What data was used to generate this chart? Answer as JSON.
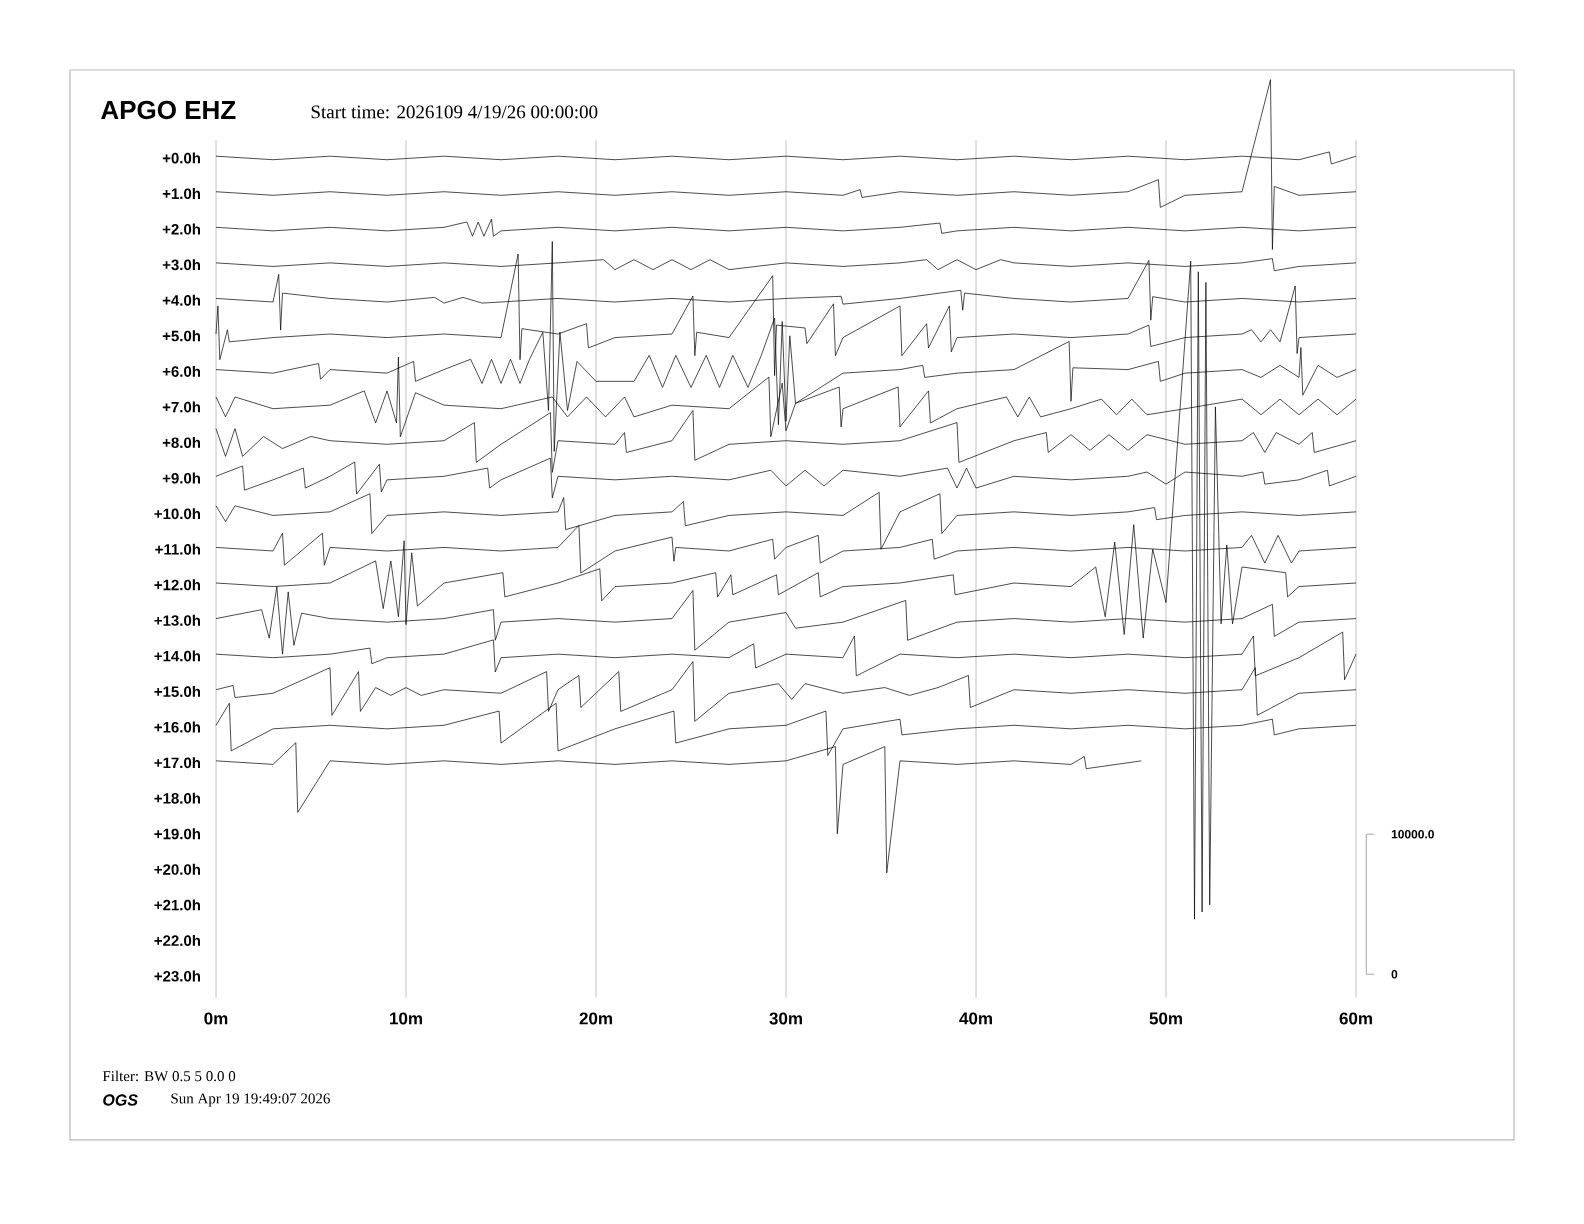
{
  "chart_data": {
    "type": "line",
    "title": "APGO EHZ",
    "subtitle": "Start time: 2026109  4/19/26 00:00:00",
    "annotations": [
      "Filter: BW 0.5 5 0.0 0",
      "OGS",
      "Sun Apr 19 19:49:07 2026"
    ],
    "color": "#000000",
    "grid": "x",
    "xlim": [
      0,
      60
    ],
    "xticks": [
      {
        "value": 0,
        "label": "0m"
      },
      {
        "value": 10,
        "label": "10m"
      },
      {
        "value": 20,
        "label": "20m"
      },
      {
        "value": 30,
        "label": "30m"
      },
      {
        "value": 40,
        "label": "40m"
      },
      {
        "value": 50,
        "label": "50m"
      },
      {
        "value": 60,
        "label": "60m"
      }
    ],
    "ylim": [
      23.6,
      -2.4
    ],
    "yticks": [
      {
        "value": 0,
        "label": "+0.0h"
      },
      {
        "value": 1,
        "label": "+1.0h"
      },
      {
        "value": 2,
        "label": "+2.0h"
      },
      {
        "value": 3,
        "label": "+3.0h"
      },
      {
        "value": 4,
        "label": "+4.0h"
      },
      {
        "value": 5,
        "label": "+5.0h"
      },
      {
        "value": 6,
        "label": "+6.0h"
      },
      {
        "value": 7,
        "label": "+7.0h"
      },
      {
        "value": 8,
        "label": "+8.0h"
      },
      {
        "value": 9,
        "label": "+9.0h"
      },
      {
        "value": 10,
        "label": "+10.0h"
      },
      {
        "value": 11,
        "label": "+11.0h"
      },
      {
        "value": 12,
        "label": "+12.0h"
      },
      {
        "value": 13,
        "label": "+13.0h"
      },
      {
        "value": 14,
        "label": "+14.0h"
      },
      {
        "value": 15,
        "label": "+15.0h"
      },
      {
        "value": 16,
        "label": "+16.0h"
      },
      {
        "value": 17,
        "label": "+17.0h"
      },
      {
        "value": 18,
        "label": "+18.0h"
      },
      {
        "value": 19,
        "label": "+19.0h"
      },
      {
        "value": 20,
        "label": "+20.0h"
      },
      {
        "value": 21,
        "label": "+21.0h"
      },
      {
        "value": 22,
        "label": "+22.0h"
      },
      {
        "value": 23,
        "label": "+23.0h"
      }
    ],
    "y2lim": [
      -1651,
      64389
    ],
    "y2ticks": [
      {
        "value": 0,
        "label": "0"
      },
      {
        "value": 10000,
        "label": "10000.0"
      }
    ],
    "series": [
      {
        "x": [
          0,
          3,
          6,
          9,
          12,
          15,
          18,
          21,
          24,
          27,
          30,
          33,
          36,
          39,
          42,
          45,
          48,
          51,
          54,
          57,
          58.6,
          58.7,
          60
        ],
        "values": [
          -0.05,
          0.05,
          -0.05,
          0.05,
          -0.05,
          0.05,
          -0.05,
          0.05,
          -0.05,
          0.05,
          -0.05,
          0.05,
          -0.05,
          0.05,
          -0.05,
          0.05,
          -0.05,
          0.05,
          -0.05,
          0.05,
          -0.17,
          0.17,
          -0.05
        ]
      },
      {
        "x": [
          0,
          3,
          6,
          9,
          12,
          15,
          18,
          21,
          24,
          27,
          30,
          33,
          33.9,
          34,
          36,
          39,
          42,
          45,
          48,
          49.6,
          49.7,
          51,
          54,
          55.5,
          55.6,
          55.7,
          57,
          60
        ],
        "values": [
          0.95,
          1.05,
          0.95,
          1.05,
          0.95,
          1.05,
          0.95,
          1.05,
          0.95,
          1.05,
          0.95,
          1.05,
          0.89,
          1.11,
          0.95,
          1.05,
          0.95,
          1.05,
          0.95,
          0.61,
          1.39,
          1.05,
          0.95,
          -2.2,
          2.57,
          0.8,
          1.05,
          0.95
        ]
      },
      {
        "x": [
          0,
          3,
          6,
          9,
          12,
          13.2,
          13.5,
          13.8,
          14.1,
          14.5,
          14.6,
          15,
          18,
          21,
          24,
          27,
          30,
          33,
          36,
          38.1,
          38.2,
          39,
          42,
          45,
          48,
          51,
          54,
          57,
          60
        ],
        "values": [
          1.95,
          2.05,
          1.95,
          2.05,
          1.95,
          1.8,
          2.2,
          1.8,
          2.2,
          1.72,
          2.2,
          2.05,
          1.95,
          2.05,
          1.95,
          2.05,
          1.95,
          2.05,
          1.95,
          1.83,
          2.12,
          2.05,
          1.95,
          2.05,
          1.95,
          2.05,
          1.95,
          2.05,
          1.95
        ]
      },
      {
        "x": [
          0,
          3,
          6,
          9,
          12,
          15,
          18,
          20.4,
          21,
          22,
          23,
          24,
          25,
          26,
          27,
          30,
          33,
          36,
          37.4,
          38,
          39,
          40,
          41.3,
          42,
          45,
          48,
          51,
          54,
          55.6,
          55.7,
          57,
          60
        ],
        "values": [
          2.95,
          3.05,
          2.95,
          3.05,
          2.95,
          3.05,
          2.95,
          2.86,
          3.14,
          2.86,
          3.14,
          2.86,
          3.14,
          2.86,
          3.14,
          2.95,
          3.05,
          2.95,
          2.86,
          3.14,
          2.86,
          3.14,
          2.86,
          2.95,
          3.05,
          2.95,
          3.05,
          2.95,
          2.83,
          3.17,
          3.05,
          2.95
        ]
      },
      {
        "x": [
          0,
          3,
          3.3,
          3.4,
          3.5,
          6,
          9,
          11.5,
          12,
          13,
          14,
          15,
          18,
          21,
          24,
          27,
          30,
          32.9,
          33,
          36,
          39.2,
          39.3,
          39.4,
          42,
          45,
          48,
          49.1,
          49.2,
          49.3,
          51,
          54,
          57,
          60
        ],
        "values": [
          3.95,
          4.05,
          3.27,
          4.84,
          3.8,
          3.95,
          4.05,
          3.92,
          4.08,
          3.92,
          4.08,
          4.05,
          3.95,
          4.05,
          3.95,
          4.05,
          3.95,
          3.89,
          4.11,
          3.95,
          3.72,
          4.28,
          3.8,
          3.95,
          4.05,
          3.95,
          2.88,
          4.56,
          3.9,
          4.05,
          3.95,
          4.05,
          3.95
        ]
      },
      {
        "x": [
          0,
          0.1,
          0.2,
          0.6,
          0.7,
          3,
          6,
          9,
          12,
          15,
          15.9,
          16,
          16.1,
          18,
          19.5,
          19.6,
          21,
          24,
          25.1,
          25.2,
          25.3,
          27,
          29.3,
          29.4,
          29.5,
          31,
          31.1,
          32.5,
          32.6,
          33,
          36,
          36.1,
          37.4,
          37.5,
          38.6,
          38.7,
          39,
          42,
          45,
          48,
          49.1,
          49.2,
          51,
          54,
          54.5,
          55,
          55.5,
          56,
          56.8,
          56.9,
          57,
          60
        ],
        "values": [
          4.95,
          4.16,
          5.67,
          4.83,
          5.17,
          5.05,
          4.95,
          5.05,
          4.95,
          5.05,
          2.7,
          5.67,
          4.8,
          4.95,
          4.66,
          5.34,
          5.05,
          4.95,
          3.88,
          5.56,
          4.9,
          5.05,
          3.31,
          6.12,
          4.7,
          4.78,
          5.22,
          4.1,
          5.56,
          5.05,
          4.16,
          5.56,
          4.66,
          5.34,
          4.16,
          5.45,
          5.05,
          4.95,
          5.05,
          4.95,
          4.7,
          5.3,
          5.05,
          4.95,
          4.83,
          5.17,
          4.83,
          5.17,
          3.6,
          5.5,
          5.05,
          4.95
        ]
      },
      {
        "x": [
          0,
          3,
          5.4,
          5.5,
          6,
          9,
          10.4,
          10.5,
          12,
          13.4,
          14,
          14.5,
          15,
          15.5,
          16,
          16.5,
          17.2,
          17.5,
          17.7,
          17.8,
          18.1,
          18.5,
          19,
          20,
          21,
          22,
          22.8,
          23.5,
          24.2,
          25,
          25.8,
          26.5,
          27.2,
          28,
          28.7,
          29.4,
          29.6,
          29.8,
          30,
          30.2,
          30.5,
          33,
          36,
          37.2,
          37.3,
          39,
          42,
          44.9,
          45,
          45.1,
          48,
          49.6,
          49.7,
          51,
          54,
          55,
          56,
          57,
          57.1,
          57.2,
          58,
          59,
          60
        ],
        "values": [
          5.95,
          6.05,
          5.78,
          6.22,
          5.95,
          6.05,
          5.72,
          6.28,
          5.95,
          5.66,
          6.34,
          5.66,
          6.34,
          5.66,
          6.34,
          5.66,
          4.9,
          7.1,
          2.35,
          8.25,
          4.9,
          7.1,
          5.72,
          6.28,
          null,
          6.28,
          5.55,
          6.45,
          5.55,
          6.45,
          5.55,
          6.45,
          5.55,
          6.45,
          5.55,
          4.5,
          7.5,
          4.6,
          7.4,
          5,
          6.9,
          6.05,
          5.95,
          5.83,
          6.17,
          6.05,
          5.95,
          5.16,
          6.84,
          5.9,
          5.95,
          5.72,
          6.28,
          6.05,
          5.95,
          6.17,
          5.83,
          6.17,
          5.33,
          6.67,
          5.83,
          6.17,
          5.95
        ]
      },
      {
        "x": [
          0,
          0.5,
          1,
          3,
          6,
          7.8,
          8.4,
          9,
          9.5,
          9.6,
          9.7,
          10.5,
          12,
          15,
          17.7,
          18.5,
          19.5,
          20.5,
          21.5,
          22,
          24,
          27,
          29.1,
          29.2,
          29.8,
          30,
          30.5,
          32.8,
          32.9,
          33,
          35.9,
          36,
          37.5,
          37.6,
          39,
          41.6,
          42.2,
          42.8,
          43.4,
          45,
          46.6,
          47.4,
          48.2,
          49,
          51,
          54,
          55,
          56,
          57,
          58,
          59,
          60
        ],
        "values": [
          6.72,
          7.28,
          6.72,
          7.05,
          6.95,
          6.55,
          7.45,
          6.55,
          7.45,
          5.6,
          7.84,
          6.6,
          6.95,
          7.05,
          6.72,
          7.28,
          6.72,
          7.28,
          6.72,
          7.28,
          6.95,
          7.05,
          6.16,
          7.84,
          6.33,
          7.67,
          6.9,
          6.44,
          7.56,
          7.05,
          6.44,
          7.56,
          6.55,
          7.45,
          7.05,
          6.72,
          7.28,
          6.72,
          7.28,
          7.05,
          6.78,
          7.22,
          6.78,
          7.22,
          7.05,
          6.78,
          7.22,
          6.78,
          7.22,
          6.78,
          7.22,
          6.78
        ]
      },
      {
        "x": [
          0,
          0.5,
          1,
          1.4,
          2.5,
          3.5,
          5,
          6,
          9,
          12,
          13.6,
          13.7,
          15,
          17.6,
          17.7,
          18,
          21,
          21.5,
          21.6,
          24,
          25.1,
          25.2,
          27,
          30,
          33,
          36,
          39,
          39.1,
          42,
          43.7,
          43.8,
          45,
          46,
          47,
          48,
          49,
          51,
          54,
          54.6,
          55.2,
          55.8,
          57,
          57.7,
          57.8,
          60
        ],
        "values": [
          7.61,
          8.39,
          7.61,
          8.39,
          7.83,
          8.17,
          7.83,
          7.95,
          8.05,
          7.95,
          7.44,
          8.56,
          8.05,
          7.16,
          8.84,
          7.95,
          8.05,
          7.72,
          8.28,
          7.95,
          7.1,
          8.5,
          8.05,
          7.95,
          8.05,
          7.95,
          7.44,
          8.56,
          7.95,
          7.72,
          8.28,
          7.78,
          8.22,
          7.78,
          8.22,
          7.78,
          8.05,
          7.95,
          7.72,
          8.28,
          7.72,
          8.05,
          7.72,
          8.28,
          7.95
        ]
      },
      {
        "x": [
          0,
          1.4,
          1.5,
          3,
          4.6,
          4.7,
          6,
          7.3,
          7.4,
          8.6,
          8.7,
          9,
          12,
          14.3,
          14.4,
          15,
          17.6,
          17.7,
          18,
          21,
          24,
          27,
          29.2,
          30,
          31,
          32,
          33,
          36,
          38.5,
          39,
          39.5,
          40,
          42,
          45,
          48,
          49,
          50,
          51,
          54,
          55.1,
          55.2,
          57,
          58.5,
          58.6,
          60
        ],
        "values": [
          8.95,
          8.66,
          9.34,
          9.05,
          8.72,
          9.28,
          8.95,
          8.55,
          9.45,
          8.61,
          9.39,
          9.05,
          8.95,
          8.72,
          9.28,
          9.05,
          8.44,
          9.56,
          8.95,
          9.05,
          8.95,
          9.05,
          8.78,
          9.22,
          8.78,
          9.22,
          8.78,
          8.95,
          8.72,
          9.28,
          8.72,
          9.28,
          8.95,
          9.05,
          8.95,
          8.83,
          9.17,
          8.83,
          8.95,
          8.83,
          9.17,
          9.05,
          8.78,
          9.22,
          8.95
        ]
      },
      {
        "x": [
          0,
          0.5,
          1,
          3,
          6,
          8.1,
          8.2,
          9,
          12,
          15,
          18,
          18.3,
          18.4,
          21,
          24,
          24.6,
          24.7,
          27,
          30,
          33,
          34.9,
          35,
          36,
          38.1,
          38.2,
          39,
          42,
          45,
          48,
          49.4,
          49.5,
          51,
          54,
          57,
          60
        ],
        "values": [
          9.78,
          10.22,
          9.78,
          10.05,
          9.95,
          9.44,
          10.56,
          10.05,
          9.95,
          10.05,
          9.95,
          9.55,
          10.45,
          10.05,
          9.95,
          9.66,
          10.34,
          10.05,
          9.95,
          10.05,
          9.4,
          11.0,
          9.95,
          9.44,
          10.56,
          10.05,
          9.95,
          10.05,
          9.95,
          9.83,
          10.17,
          10.05,
          9.95,
          10.05,
          9.95
        ]
      },
      {
        "x": [
          0,
          3,
          3.5,
          3.6,
          5.6,
          5.7,
          6,
          9,
          12,
          15,
          18,
          19.1,
          19.2,
          21,
          24,
          24.1,
          24.2,
          27,
          29.3,
          29.4,
          30,
          31.7,
          31.8,
          33,
          36,
          37.7,
          37.8,
          39,
          42,
          45,
          48,
          51,
          54,
          54.5,
          55.2,
          55.9,
          56.6,
          57,
          60
        ],
        "values": [
          10.95,
          11.05,
          10.55,
          11.45,
          10.55,
          11.45,
          10.95,
          11.05,
          10.95,
          11.05,
          10.95,
          10.33,
          11.67,
          11.05,
          10.66,
          11.34,
          10.95,
          11.05,
          10.72,
          11.28,
          10.95,
          10.61,
          11.39,
          11.05,
          10.95,
          10.72,
          11.28,
          11.05,
          10.95,
          11.05,
          10.95,
          11.05,
          10.95,
          10.61,
          11.39,
          10.61,
          11.39,
          11.05,
          10.95
        ]
      },
      {
        "x": [
          0,
          3,
          6,
          8.4,
          8.8,
          9.2,
          9.6,
          9.9,
          10,
          10.3,
          10.6,
          12,
          15.1,
          15.2,
          18,
          20.2,
          20.3,
          21,
          24,
          26.3,
          26.4,
          27.1,
          27.2,
          29.5,
          29.6,
          31.7,
          31.8,
          33,
          36,
          38.8,
          38.9,
          42,
          45,
          46.3,
          46.8,
          47.3,
          47.8,
          48.3,
          48.8,
          49.3,
          50,
          51.3,
          51.5,
          51.7,
          51.9,
          52.1,
          52.3,
          52.6,
          52.9,
          53.2,
          53.5,
          54,
          56.3,
          56.4,
          57,
          60
        ],
        "values": [
          11.95,
          12.05,
          11.95,
          11.33,
          12.67,
          11.33,
          12.9,
          10.76,
          13.12,
          11.1,
          12.6,
          11.95,
          11.66,
          12.34,
          11.95,
          11.55,
          12.45,
          12.05,
          11.95,
          11.66,
          12.34,
          11.72,
          12.28,
          11.72,
          12.28,
          11.66,
          12.34,
          12.05,
          11.95,
          11.72,
          12.28,
          11.95,
          12.05,
          11.5,
          12.9,
          10.8,
          13.4,
          10.31,
          13.5,
          11,
          12.5,
          2.9,
          21.4,
          3.2,
          21.2,
          3.5,
          21,
          7,
          13.1,
          10.88,
          13.1,
          11.5,
          11.66,
          12.34,
          12.05,
          11.95
        ]
      },
      {
        "x": [
          0,
          2.4,
          2.8,
          3.2,
          3.5,
          3.8,
          4.1,
          4.5,
          6,
          9,
          12,
          14.6,
          14.7,
          15,
          18,
          21,
          24,
          25.1,
          25.2,
          27,
          30,
          30.5,
          33,
          36.3,
          36.4,
          39,
          42,
          45,
          48,
          51,
          54,
          55.6,
          55.7,
          57,
          60
        ],
        "values": [
          12.95,
          12.7,
          13.5,
          12.05,
          13.95,
          12.2,
          13.7,
          12.8,
          12.95,
          13.05,
          12.95,
          12.7,
          13.56,
          13.05,
          12.95,
          13.05,
          12.95,
          12.16,
          13.84,
          13.05,
          12.78,
          13.22,
          13.05,
          12.44,
          13.56,
          13.05,
          12.95,
          13.05,
          12.95,
          13.05,
          12.95,
          12.55,
          13.45,
          13.05,
          12.95
        ]
      },
      {
        "x": [
          0,
          3,
          6,
          8.1,
          8.2,
          9,
          12,
          14.6,
          14.7,
          15,
          18,
          21,
          24,
          27,
          28.3,
          28.4,
          30,
          33,
          33.6,
          33.7,
          36,
          39,
          42,
          45,
          48,
          51,
          54,
          54.6,
          54.7,
          57,
          59.3,
          59.4,
          60
        ],
        "values": [
          13.95,
          14.05,
          13.95,
          13.78,
          14.22,
          14.05,
          13.95,
          13.55,
          14.45,
          14.05,
          13.95,
          14.05,
          13.95,
          14.05,
          13.66,
          14.34,
          13.95,
          14.05,
          13.44,
          14.56,
          13.95,
          14.05,
          13.95,
          14.05,
          13.95,
          14.05,
          13.95,
          13.44,
          14.56,
          14.05,
          13.33,
          14.67,
          13.95
        ]
      },
      {
        "x": [
          0,
          0.9,
          1,
          3,
          6,
          6.1,
          7.5,
          7.6,
          8.4,
          9.2,
          10,
          10.8,
          12,
          15,
          17.4,
          17.5,
          18,
          19.1,
          19.2,
          21.2,
          21.3,
          24,
          25.1,
          25.2,
          27,
          29.6,
          30.3,
          31,
          33,
          35.2,
          36.5,
          38,
          39.6,
          39.7,
          42,
          45,
          48,
          51,
          54,
          54.7,
          54.8,
          57,
          60
        ],
        "values": [
          14.95,
          14.83,
          15.17,
          15.05,
          14.33,
          15.67,
          14.44,
          15.56,
          14.89,
          15.11,
          14.89,
          15.11,
          14.95,
          15.05,
          14.44,
          15.56,
          14.95,
          14.55,
          15.45,
          14.44,
          15.56,
          14.95,
          14.16,
          15.84,
          15.05,
          14.78,
          15.22,
          14.78,
          15.05,
          14.89,
          15.11,
          14.89,
          14.55,
          15.45,
          14.95,
          15.05,
          14.95,
          15.05,
          14.95,
          14.33,
          15.67,
          15.05,
          14.95
        ]
      },
      {
        "x": [
          0,
          0.7,
          0.8,
          3,
          6,
          9,
          12,
          14.9,
          15,
          17.9,
          18,
          21,
          24.1,
          24.2,
          27,
          30,
          32.1,
          32.2,
          33,
          36,
          36.1,
          39,
          42,
          45,
          48,
          51,
          54,
          55.6,
          55.7,
          57,
          60
        ],
        "values": [
          15.95,
          15.33,
          16.67,
          16.05,
          15.95,
          16.05,
          15.95,
          15.55,
          16.45,
          15.33,
          16.67,
          16.05,
          15.55,
          16.45,
          16.05,
          15.95,
          15.55,
          16.8,
          16.05,
          15.78,
          16.22,
          16.05,
          15.95,
          16.05,
          15.95,
          16.05,
          15.95,
          15.78,
          16.22,
          16.05,
          15.95
        ]
      },
      {
        "x": [
          0,
          3,
          4.2,
          4.3,
          6,
          9,
          12,
          15,
          18,
          21,
          24,
          27,
          30,
          32.6,
          32.7,
          33,
          35.2,
          35.3,
          36,
          39,
          42,
          45,
          45.7,
          45.8,
          48.7
        ],
        "values": [
          16.95,
          17.05,
          16.44,
          18.4,
          16.95,
          17.05,
          16.95,
          17.05,
          16.95,
          17.05,
          16.95,
          17.05,
          16.95,
          16.55,
          19.0,
          17.05,
          16.55,
          20.1,
          16.95,
          17.05,
          16.95,
          17.05,
          16.83,
          17.17,
          16.95
        ]
      }
    ]
  }
}
